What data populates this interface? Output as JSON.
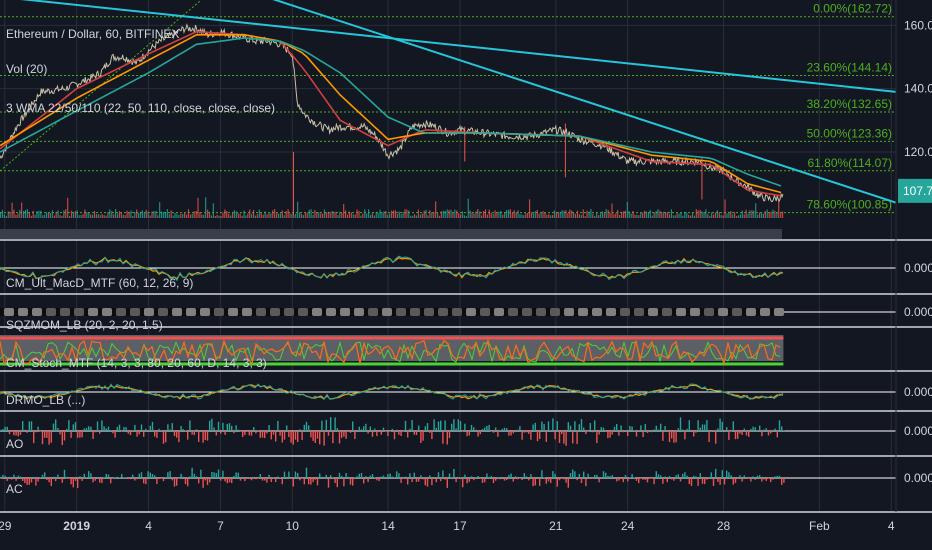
{
  "header": {
    "symbol": "Ethereum / Dollar, 60, BITFINEX",
    "vol_label": "Vol (20)",
    "wma_label": "3 WMA 22/50/110 (22, 50, 110, close, close, close)"
  },
  "colors": {
    "background": "#131722",
    "grid": "#2a2e39",
    "separator": "#d1d4dc",
    "fib": "#4caf1f",
    "trendline": "#26c6da",
    "price_tag": "#26a69a",
    "price_line": "#e8c547",
    "wma_green": "#26a69a",
    "wma_orange": "#ff9800",
    "wma_red": "#d43f3f",
    "up": "#26a69a",
    "down": "#ef5350",
    "text": "#d1d4dc",
    "pane_zero": "#ffffff"
  },
  "last_price": "107.73",
  "chart_data": {
    "type": "line",
    "title": "Ethereum / Dollar, 60, BITFINEX",
    "ylim": [
      96,
      168
    ],
    "y_ticks": [
      {
        "label": "160.00",
        "value": 160
      },
      {
        "label": "140.00",
        "value": 140
      },
      {
        "label": "120.00",
        "value": 120
      }
    ],
    "x_ticks": [
      {
        "label": "29",
        "day": -3
      },
      {
        "label": "2019",
        "day": 0
      },
      {
        "label": "4",
        "day": 3
      },
      {
        "label": "7",
        "day": 6
      },
      {
        "label": "10",
        "day": 9
      },
      {
        "label": "14",
        "day": 13
      },
      {
        "label": "17",
        "day": 16
      },
      {
        "label": "21",
        "day": 20
      },
      {
        "label": "24",
        "day": 23
      },
      {
        "label": "28",
        "day": 27
      },
      {
        "label": "Feb",
        "day": 31
      },
      {
        "label": "4",
        "day": 34
      }
    ],
    "xlim": [
      -3.2,
      34.2
    ],
    "price_series": {
      "name": "",
      "day": [
        -3.2,
        -2.5,
        -1.5,
        -0.5,
        0.5,
        1.0,
        1.5,
        2.0,
        2.5,
        3.0,
        3.5,
        4.0,
        4.5,
        5.0,
        5.5,
        6.0,
        6.5,
        7.0,
        7.5,
        8.0,
        8.5,
        9.0,
        9.2,
        9.5,
        10.0,
        10.5,
        11.0,
        12.0,
        12.5,
        13.0,
        13.5,
        14.0,
        14.5,
        15.0,
        15.5,
        16.0,
        17.0,
        18.0,
        19.0,
        20.0,
        20.5,
        21.0,
        22.0,
        23.0,
        24.0,
        25.0,
        26.0,
        26.5,
        27.0,
        27.5,
        28.0,
        28.5,
        29.0,
        29.5
      ],
      "close": [
        118,
        128,
        139,
        140,
        143,
        145,
        150,
        150,
        148,
        152,
        155,
        157,
        159,
        159,
        157,
        158,
        157,
        156,
        155,
        155,
        154,
        151,
        136,
        132,
        129,
        127,
        128,
        128,
        125,
        119,
        121,
        128,
        129,
        128,
        126,
        127,
        126,
        125,
        125,
        127,
        126,
        124,
        122,
        117,
        117,
        117,
        117,
        115,
        114,
        111,
        109,
        106,
        105,
        106
      ]
    },
    "wma": [
      {
        "period": 22,
        "day": [
          -3.2,
          0,
          3,
          5,
          7,
          8.5,
          9.5,
          11,
          13,
          14.5,
          17,
          21,
          24,
          26.5,
          28,
          29.5
        ],
        "value": [
          121,
          140,
          151,
          158,
          157,
          155,
          146,
          130,
          122,
          127,
          126,
          125,
          117,
          116,
          108,
          106
        ]
      },
      {
        "period": 50,
        "day": [
          -3.2,
          0,
          3,
          5,
          7,
          8.5,
          9.5,
          11,
          13,
          14.5,
          17,
          21,
          24,
          26.5,
          28,
          29.5
        ],
        "value": [
          122,
          137,
          149,
          157,
          157,
          155,
          151,
          138,
          124,
          126,
          126,
          125,
          119,
          117,
          110,
          107
        ]
      },
      {
        "period": 110,
        "day": [
          -3.2,
          0,
          3,
          5,
          7,
          8.5,
          9.5,
          11,
          13,
          14.5,
          17,
          21,
          24,
          26.5,
          28,
          29.5
        ],
        "value": [
          120,
          133,
          145,
          154,
          156,
          155,
          152,
          145,
          131,
          126,
          126,
          125,
          120,
          118,
          113,
          109
        ]
      }
    ],
    "fib_levels": [
      {
        "label": "0.00%(162.72)",
        "value": 162.72
      },
      {
        "label": "23.60%(144.14)",
        "value": 144.14
      },
      {
        "label": "38.20%(132.65)",
        "value": 132.65
      },
      {
        "label": "50.00%(123.36)",
        "value": 123.36
      },
      {
        "label": "61.80%(114.07)",
        "value": 114.07
      },
      {
        "label": "78.60%(100.85)",
        "value": 100.85
      }
    ],
    "trendlines": [
      {
        "from": [
          -3.2,
          169
        ],
        "to": [
          34.2,
          139
        ]
      },
      {
        "from": [
          7.9,
          169
        ],
        "to": [
          34.2,
          104
        ]
      }
    ]
  },
  "panes": [
    {
      "id": "macd",
      "label": "CM_Ult_MacD_MTF (60, 12, 26, 9)",
      "value": "0.0000"
    },
    {
      "id": "sqz",
      "label": "SQZMOM_LB (20, 2, 20, 1.5)",
      "value": "0.0000"
    },
    {
      "id": "stoch",
      "label": "CM_Stoch_MTF (14, 3, 3, 80, 20, 60, D, 14, 3, 3)",
      "value": ""
    },
    {
      "id": "dmi",
      "label": "DRMO_LB (...)",
      "value": "0.0000"
    },
    {
      "id": "ao",
      "label": "AO",
      "value": "0.0000"
    },
    {
      "id": "ac",
      "label": "AC",
      "value": "0.0000"
    }
  ]
}
